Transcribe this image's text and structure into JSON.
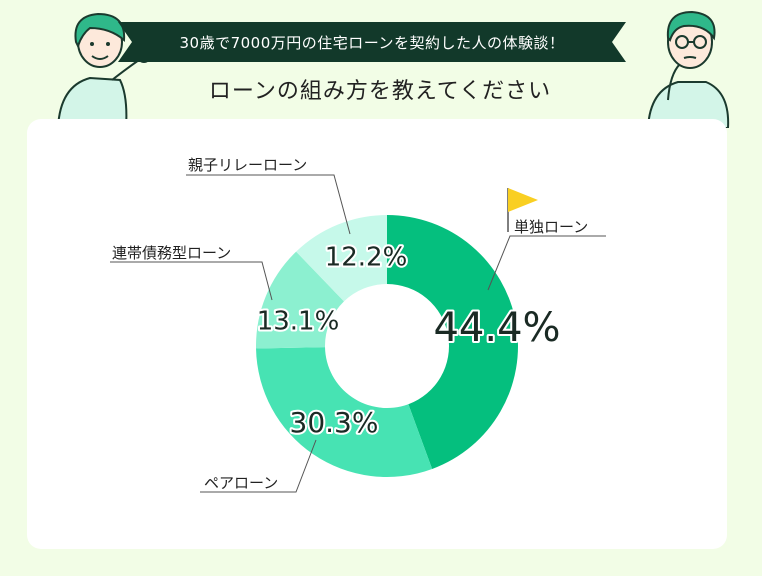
{
  "header": {
    "banner_text": "30歳で7000万円の住宅ローンを契約した人の体験談！",
    "subtitle": "ローンの組み方を教えてください"
  },
  "colors": {
    "banner_bg": "#12392a",
    "page_bg": "#f2fde6",
    "flag": "#f9cf22",
    "slice_colors": [
      "#05bf7e",
      "#47e3b3",
      "#8cf0d0",
      "#c6f9ea"
    ]
  },
  "chart_data": {
    "type": "pie",
    "subtype": "donut",
    "title": "ローンの組み方を教えてください",
    "unit": "%",
    "slices": [
      {
        "label": "単独ローン",
        "value": 44.4,
        "display": "44.4%",
        "highlight": true
      },
      {
        "label": "ペアローン",
        "value": 30.3,
        "display": "30.3%"
      },
      {
        "label": "連帯債務型ローン",
        "value": 13.1,
        "display": "13.1%"
      },
      {
        "label": "親子リレーローン",
        "value": 12.2,
        "display": "12.2%"
      }
    ],
    "start": "top",
    "direction": "clockwise",
    "legend": "none (leader-line labels)"
  }
}
